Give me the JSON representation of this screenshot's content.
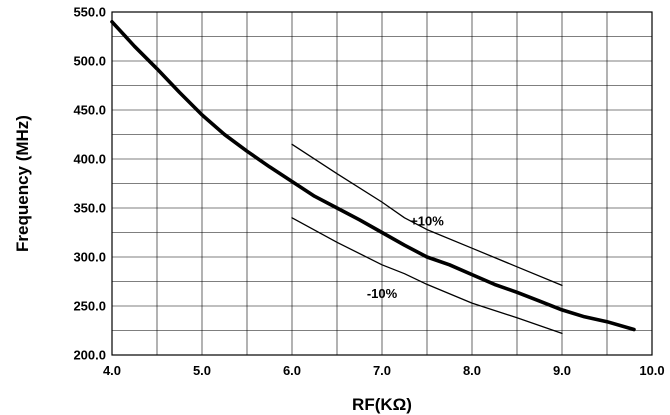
{
  "chart_data": {
    "type": "line",
    "xlabel": "RF(KΩ)",
    "ylabel": "Frequency (MHz)",
    "xlim": [
      4.0,
      10.0
    ],
    "ylim": [
      200.0,
      550.0
    ],
    "x_ticks": [
      "4.0",
      "5.0",
      "6.0",
      "7.0",
      "8.0",
      "9.0",
      "10.0"
    ],
    "y_ticks": [
      "200.0",
      "250.0",
      "300.0",
      "350.0",
      "400.0",
      "450.0",
      "500.0",
      "550.0"
    ],
    "x_minor_step": 0.5,
    "y_minor_step": 25,
    "grid": true,
    "series": [
      {
        "points": [
          [
            4.0,
            540
          ],
          [
            4.25,
            515
          ],
          [
            4.5,
            492
          ],
          [
            4.75,
            468
          ],
          [
            5.0,
            445
          ],
          [
            5.25,
            425
          ],
          [
            5.5,
            408
          ],
          [
            5.75,
            392
          ],
          [
            6.0,
            377
          ],
          [
            6.25,
            362
          ],
          [
            6.5,
            350
          ],
          [
            6.75,
            338
          ],
          [
            7.0,
            325
          ],
          [
            7.25,
            312
          ],
          [
            7.5,
            300
          ],
          [
            7.75,
            292
          ],
          [
            8.0,
            282
          ],
          [
            8.25,
            272
          ],
          [
            8.5,
            264
          ],
          [
            8.75,
            255
          ],
          [
            9.0,
            246
          ],
          [
            9.25,
            239
          ],
          [
            9.5,
            234
          ],
          [
            9.8,
            226
          ]
        ],
        "color": "#000000",
        "weight": "thick"
      },
      {
        "points": [
          [
            6.0,
            415
          ],
          [
            6.5,
            385
          ],
          [
            7.0,
            356
          ],
          [
            7.25,
            340
          ],
          [
            7.5,
            328
          ],
          [
            8.0,
            309
          ],
          [
            8.5,
            290
          ],
          [
            9.0,
            271
          ]
        ],
        "color": "#000000",
        "weight": "thin"
      },
      {
        "points": [
          [
            6.0,
            340
          ],
          [
            6.5,
            315
          ],
          [
            7.0,
            292
          ],
          [
            7.25,
            283
          ],
          [
            7.5,
            272
          ],
          [
            8.0,
            253
          ],
          [
            8.5,
            238
          ],
          [
            9.0,
            222
          ]
        ],
        "color": "#000000",
        "weight": "thin"
      }
    ],
    "annotations": [
      {
        "text": "+10%",
        "x": 7.5,
        "y": 332
      },
      {
        "text": "-10%",
        "x": 7.0,
        "y": 258
      }
    ]
  }
}
